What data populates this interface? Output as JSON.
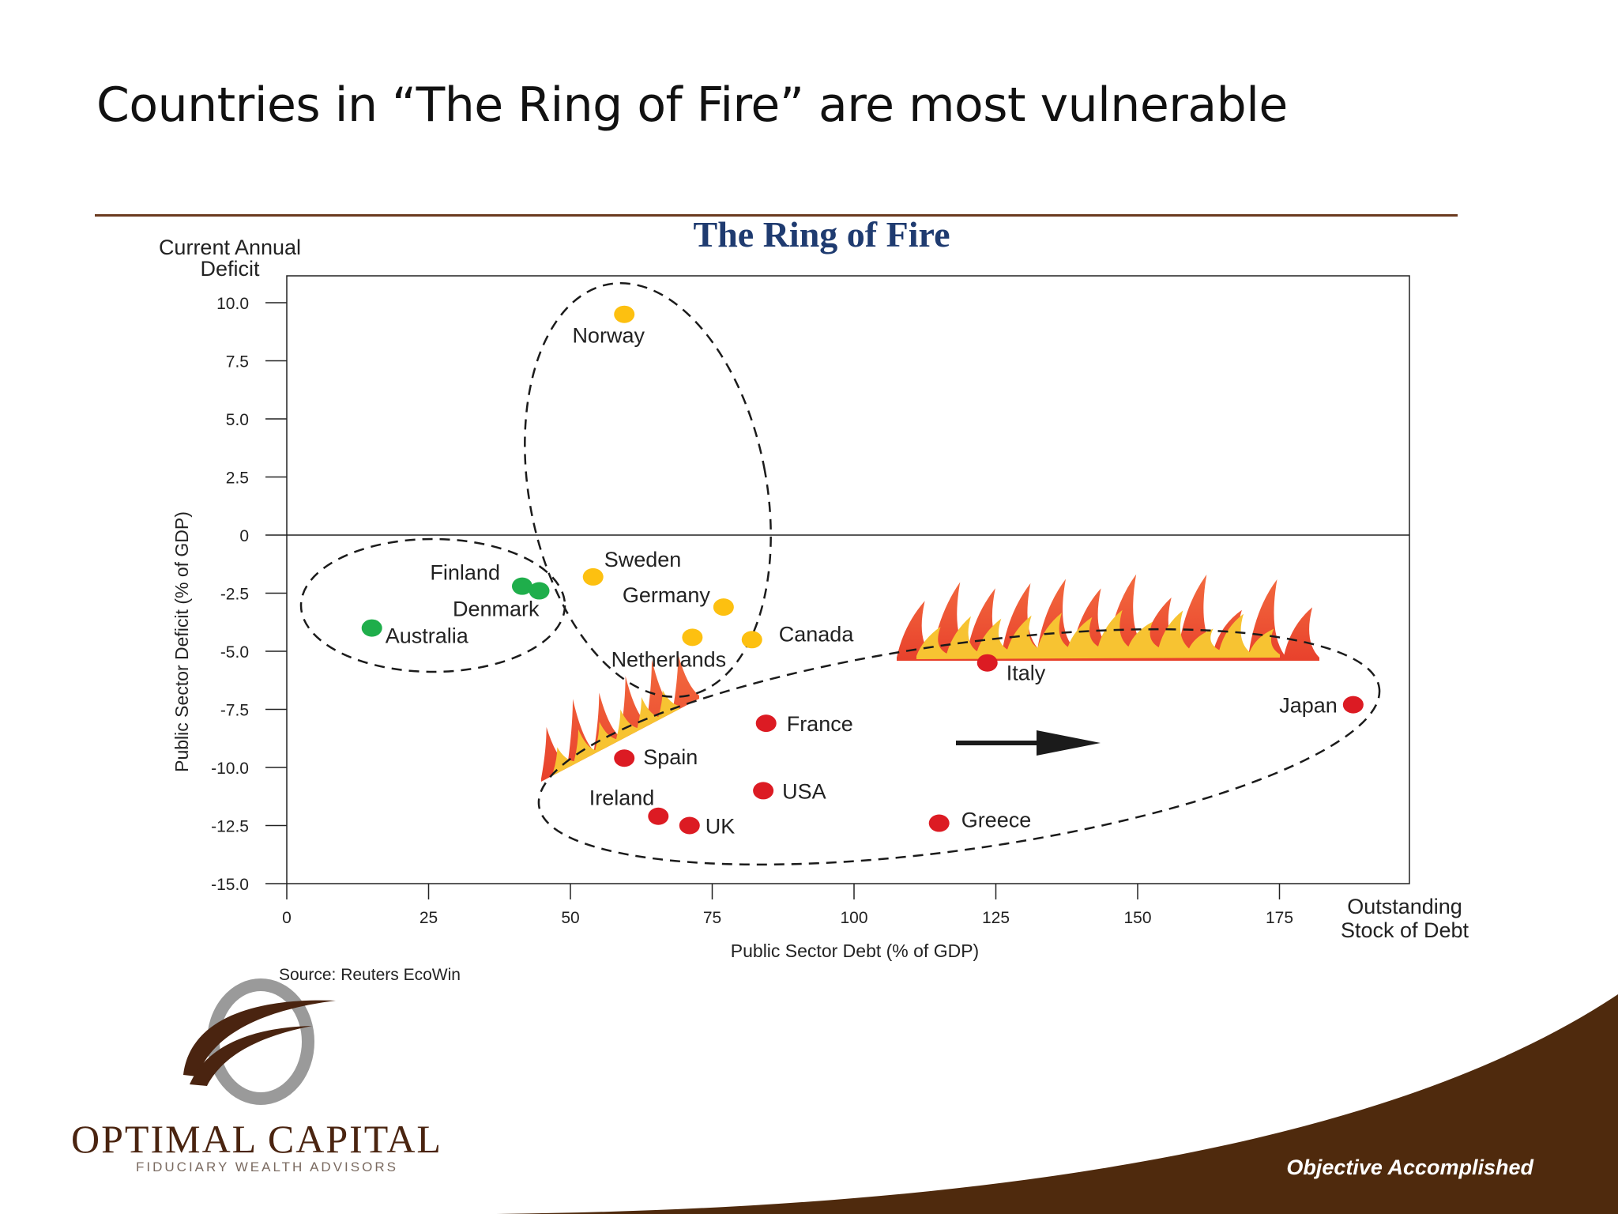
{
  "slide": {
    "title": "Countries in “The Ring of Fire” are most vulnerable",
    "tagline": "Objective Accomplished"
  },
  "logo": {
    "name": "OPTIMAL CAPITAL",
    "subtitle": "FIDUCIARY WEALTH ADVISORS",
    "brand_color": "#4a2410"
  },
  "chart_data": {
    "type": "scatter",
    "title": "The Ring of Fire",
    "xlabel": "Public Sector Debt (% of GDP)",
    "ylabel": "Public Sector Deficit (% of GDP)",
    "y_caption": "Current Annual Deficit",
    "x_caption": "Outstanding Stock of Debt",
    "source": "Source: Reuters EcoWin",
    "xlim": [
      0,
      198
    ],
    "ylim": [
      -15,
      11.2
    ],
    "xticks": [
      0,
      25,
      50,
      75,
      100,
      125,
      150,
      175
    ],
    "yticks": [
      10,
      7.5,
      5,
      2.5,
      0,
      -2.5,
      -5,
      -7.5,
      -10,
      -12.5,
      -15
    ],
    "ytick_labels": [
      "10.0",
      "7.5",
      "5.0",
      "2.5",
      "0",
      "-2.5",
      "-5.0",
      "-7.5",
      "-10.0",
      "-12.5",
      "-15.0"
    ],
    "grid": false,
    "colors": {
      "green": "#1fae4b",
      "yellow": "#fdc010",
      "red": "#dc1b23",
      "title": "#1f3b70"
    },
    "points": [
      {
        "label": "Finland",
        "x": 41.5,
        "y": -2.2,
        "group": "green"
      },
      {
        "label": "Denmark",
        "x": 44.5,
        "y": -2.4,
        "group": "green"
      },
      {
        "label": "Australia",
        "x": 15,
        "y": -4.0,
        "group": "green"
      },
      {
        "label": "Norway",
        "x": 59.5,
        "y": 9.5,
        "group": "yellow"
      },
      {
        "label": "Sweden",
        "x": 54,
        "y": -1.8,
        "group": "yellow"
      },
      {
        "label": "Germany",
        "x": 77,
        "y": -3.1,
        "group": "yellow"
      },
      {
        "label": "Netherlands",
        "x": 71.5,
        "y": -4.4,
        "group": "yellow"
      },
      {
        "label": "Canada",
        "x": 82,
        "y": -4.5,
        "group": "yellow"
      },
      {
        "label": "Italy",
        "x": 123.5,
        "y": -5.5,
        "group": "red"
      },
      {
        "label": "Japan",
        "x": 188,
        "y": -7.3,
        "group": "red"
      },
      {
        "label": "France",
        "x": 84.5,
        "y": -8.1,
        "group": "red"
      },
      {
        "label": "Spain",
        "x": 59.5,
        "y": -9.6,
        "group": "red"
      },
      {
        "label": "USA",
        "x": 84,
        "y": -11.0,
        "group": "red"
      },
      {
        "label": "Ireland",
        "x": 65.5,
        "y": -12.1,
        "group": "red"
      },
      {
        "label": "UK",
        "x": 71,
        "y": -12.5,
        "group": "red"
      },
      {
        "label": "Greece",
        "x": 115,
        "y": -12.4,
        "group": "red"
      }
    ]
  }
}
